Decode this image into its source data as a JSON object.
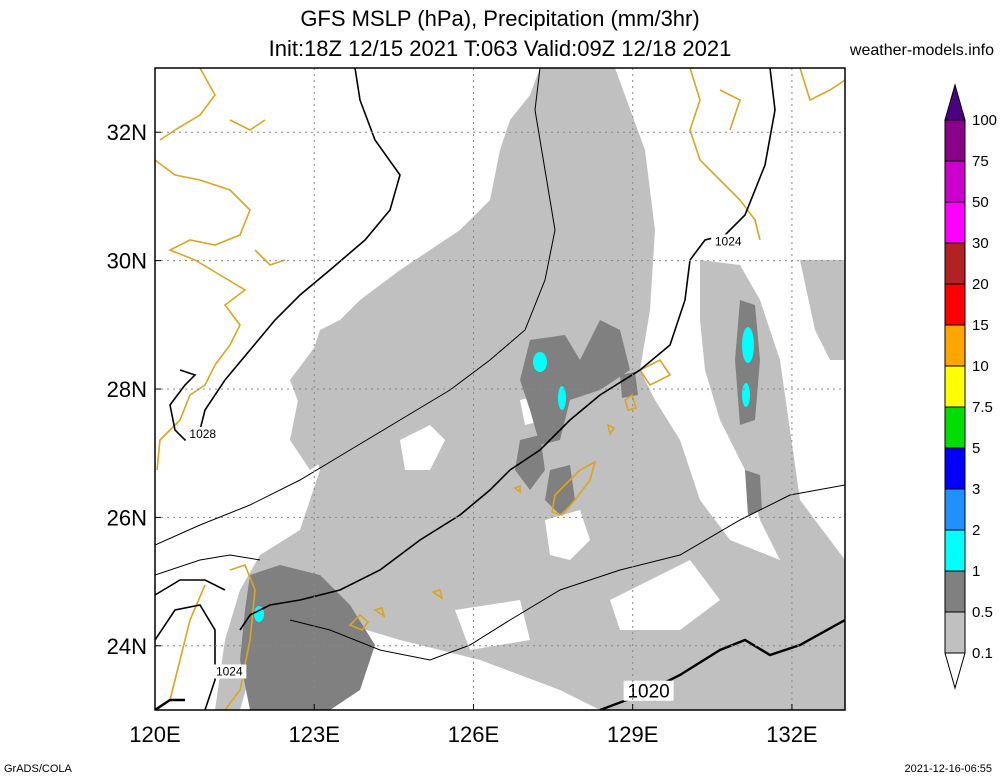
{
  "header": {
    "title_line1": "GFS MSLP (hPa), Precipitation (mm/3hr)",
    "title_line2": "Init:18Z 12/15 2021 T:063 Valid:09Z 12/18 2021",
    "site": "weather-models.info"
  },
  "footer": {
    "left": "GrADS/COLA",
    "right": "2021-12-16-06:55"
  },
  "axes": {
    "lon_range": [
      120,
      133
    ],
    "lat_range": [
      23,
      33
    ],
    "lon_ticks": [
      {
        "value": 120,
        "label": "120E"
      },
      {
        "value": 123,
        "label": "123E"
      },
      {
        "value": 126,
        "label": "126E"
      },
      {
        "value": 129,
        "label": "129E"
      },
      {
        "value": 132,
        "label": "132E"
      }
    ],
    "lat_ticks": [
      {
        "value": 24,
        "label": "24N"
      },
      {
        "value": 26,
        "label": "26N"
      },
      {
        "value": 28,
        "label": "28N"
      },
      {
        "value": 30,
        "label": "30N"
      },
      {
        "value": 32,
        "label": "32N"
      }
    ],
    "grid": true
  },
  "colorbar": {
    "levels": [
      "0.1",
      "0.5",
      "1",
      "2",
      "3",
      "5",
      "7.5",
      "10",
      "15",
      "20",
      "30",
      "50",
      "75",
      "100"
    ],
    "colors": [
      "#ffffff",
      "#c0c0c0",
      "#808080",
      "#00ffff",
      "#1e90ff",
      "#0000ff",
      "#00dd00",
      "#ffff00",
      "#ffa500",
      "#ff0000",
      "#b22222",
      "#ff00ff",
      "#cc00cc",
      "#8b008b",
      "#4b0082"
    ]
  },
  "map": {
    "coastline_color": "#daa520",
    "precip_light_color": "#c0c0c0",
    "precip_mid_color": "#808080",
    "precip_heavy_color": "#00ffff",
    "isobar_labels": [
      {
        "text": "1028",
        "lon": 120.9,
        "lat": 27.3,
        "size": "small"
      },
      {
        "text": "1024",
        "lon": 130.8,
        "lat": 30.3,
        "size": "small"
      },
      {
        "text": "1024",
        "lon": 121.4,
        "lat": 23.6,
        "size": "small"
      },
      {
        "text": "1020",
        "lon": 129.3,
        "lat": 23.3,
        "size": "large"
      }
    ]
  }
}
